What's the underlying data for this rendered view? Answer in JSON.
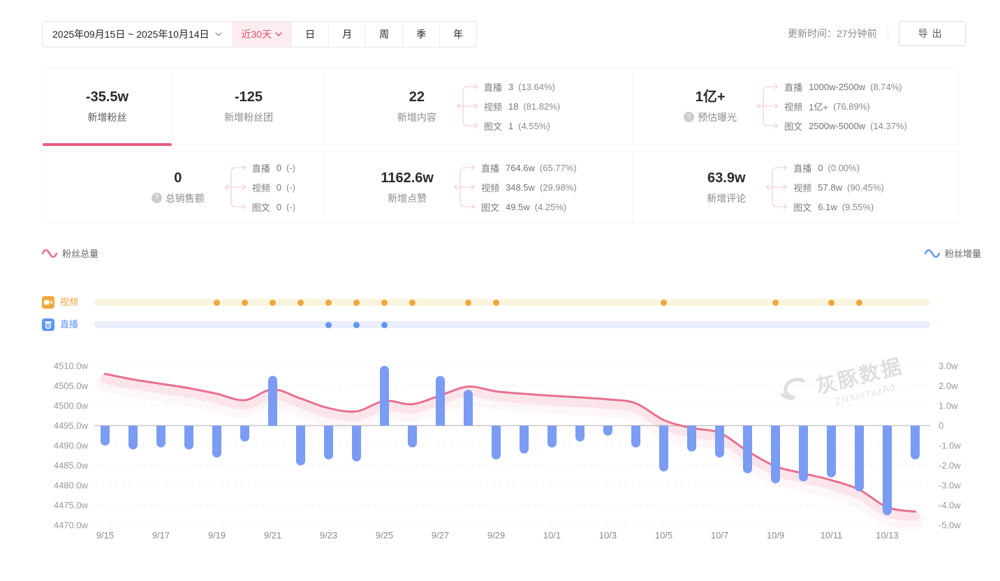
{
  "toolbar": {
    "date_range": "2025年09月15日 ~ 2025年10月14日",
    "quick_range": "近30天",
    "tabs": [
      "日",
      "月",
      "周",
      "季",
      "年"
    ],
    "update_time": "更新时间：27分钟前",
    "export_label": "导出"
  },
  "icons": {
    "help": "?"
  },
  "stats": {
    "rows": [
      [
        {
          "value": "-35.5w",
          "label": "新增粉丝",
          "active": true
        },
        {
          "value": "-125",
          "label": "新增粉丝团"
        },
        {
          "value": "22",
          "label": "新增内容",
          "breakdown": [
            [
              "直播",
              "3",
              "(13.64%)"
            ],
            [
              "视频",
              "18",
              "(81.82%)"
            ],
            [
              "图文",
              "1",
              "(4.55%)"
            ]
          ]
        },
        {
          "value": "1亿+",
          "label": "预估曝光",
          "help": true,
          "breakdown": [
            [
              "直播",
              "1000w-2500w",
              "(8.74%)"
            ],
            [
              "视频",
              "1亿+",
              "(76.89%)"
            ],
            [
              "图文",
              "2500w-5000w",
              "(14.37%)"
            ]
          ]
        }
      ],
      [
        {
          "value": "0",
          "label": "总销售额",
          "help": true,
          "breakdown": [
            [
              "直播",
              "0",
              "(-)"
            ],
            [
              "视频",
              "0",
              "(-)"
            ],
            [
              "图文",
              "0",
              "(-)"
            ]
          ]
        },
        {
          "value": "1162.6w",
          "label": "新增点赞",
          "breakdown": [
            [
              "直播",
              "764.6w",
              "(65.77%)"
            ],
            [
              "视频",
              "348.5w",
              "(29.98%)"
            ],
            [
              "图文",
              "49.5w",
              "(4.25%)"
            ]
          ]
        },
        {
          "value": "63.9w",
          "label": "新增评论",
          "breakdown": [
            [
              "直播",
              "0",
              "(0.00%)"
            ],
            [
              "视频",
              "57.8w",
              "(90.45%)"
            ],
            [
              "图文",
              "6.1w",
              "(9.55%)"
            ]
          ]
        }
      ]
    ]
  },
  "legend": {
    "total": "粉丝总量",
    "delta": "粉丝增量"
  },
  "timeline": {
    "video_label": "视频",
    "live_label": "直播"
  },
  "watermark": {
    "brand": "灰豚数据",
    "code": "ZNXin7azAd"
  },
  "colors": {
    "accent_pink": "#ec5d7d",
    "line_pink": "#e8708f",
    "bar_blue": "#7b9cf3",
    "video_orange": "#f0a83c",
    "live_blue": "#5f96f3",
    "grid": "#ececec",
    "baseline": "#c8c8c8",
    "axis_text": "#999999",
    "x_text": "#8a8a8a"
  },
  "chart_data": {
    "type": "line+bar",
    "x": [
      "9/15",
      "9/16",
      "9/17",
      "9/18",
      "9/19",
      "9/20",
      "9/21",
      "9/22",
      "9/23",
      "9/24",
      "9/25",
      "9/26",
      "9/27",
      "9/28",
      "9/29",
      "9/30",
      "10/1",
      "10/2",
      "10/3",
      "10/4",
      "10/5",
      "10/6",
      "10/7",
      "10/8",
      "10/9",
      "10/10",
      "10/11",
      "10/12",
      "10/13",
      "10/14"
    ],
    "x_tick_every": 2,
    "series": [
      {
        "name": "粉丝总量",
        "type": "line",
        "axis": "left",
        "color": "#e8708f",
        "values": [
          4508.0,
          4506.6,
          4505.5,
          4504.4,
          4503.0,
          4501.4,
          4504.1,
          4501.8,
          4499.4,
          4498.6,
          4501.2,
          4500.4,
          4502.6,
          4504.8,
          4503.6,
          4503.0,
          4502.5,
          4502.1,
          4501.6,
          4500.6,
          4496.4,
          4494.4,
          4493.2,
          4488.6,
          4484.8,
          4483.0,
          4481.3,
          4478.9,
          4474.5,
          4473.4
        ]
      },
      {
        "name": "粉丝增量",
        "type": "bar",
        "axis": "right",
        "color": "#7b9cf3",
        "values": [
          -1.0,
          -1.2,
          -1.1,
          -1.2,
          -1.6,
          -0.8,
          2.5,
          -2.0,
          -1.7,
          -1.8,
          3.0,
          -1.1,
          2.5,
          1.8,
          -1.7,
          -1.4,
          -1.1,
          -0.8,
          -0.5,
          -1.1,
          -2.3,
          -1.3,
          -1.6,
          -2.4,
          -2.9,
          -2.8,
          -2.6,
          -3.3,
          -4.5,
          -1.7
        ]
      }
    ],
    "left_axis": {
      "min": 4470,
      "max": 4510,
      "step": 5,
      "unit": "w",
      "ticks": [
        "4510.0w",
        "4505.0w",
        "4500.0w",
        "4495.0w",
        "4490.0w",
        "4485.0w",
        "4480.0w",
        "4475.0w",
        "4470.0w"
      ]
    },
    "right_axis": {
      "min": -5,
      "max": 3,
      "step": 1,
      "ticks": [
        "3.0w",
        "2.0w",
        "1.0w",
        "0",
        "-1.0w",
        "-2.0w",
        "-3.0w",
        "-4.0w",
        "-5.0w"
      ],
      "baseline_left": "4495.0w",
      "baseline_right": "0"
    },
    "events": {
      "video_days": [
        "9/19",
        "9/20",
        "9/21",
        "9/22",
        "9/23",
        "9/24",
        "9/25",
        "9/26",
        "9/28",
        "9/29",
        "10/5",
        "10/9",
        "10/11",
        "10/12"
      ],
      "live_days": [
        "9/23",
        "9/24",
        "9/25"
      ]
    },
    "grid": "dashed horizontal lines, solid gray zero baseline at left 4495.0w / right 0",
    "legend_position": "total-fans top-left, fans-delta top-right"
  }
}
